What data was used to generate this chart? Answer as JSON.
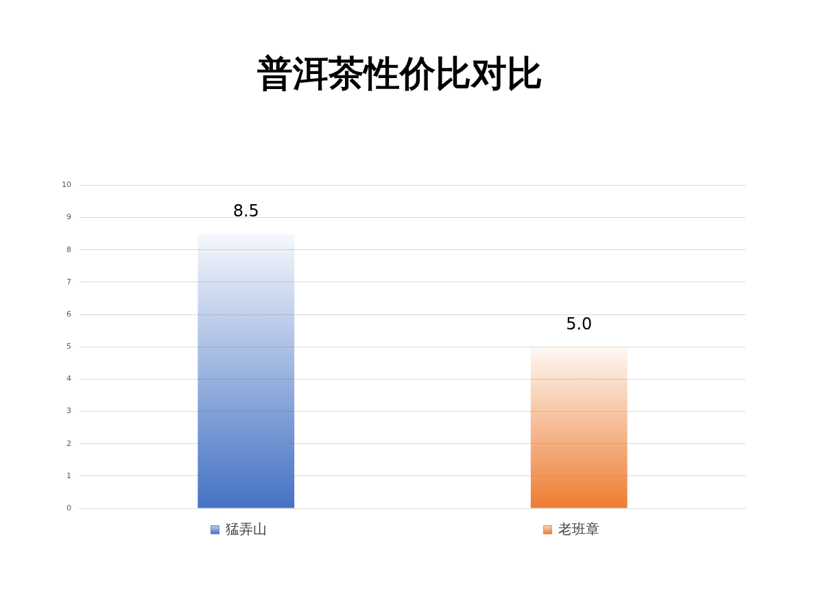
{
  "chart_data": {
    "type": "bar",
    "title": "普洱茶性价比对比",
    "categories": [
      "猛弄山",
      "老班章"
    ],
    "values": [
      8.5,
      5.0
    ],
    "colors": [
      "#4472c4",
      "#ed7d31"
    ],
    "value_labels": [
      "8.5",
      "5.0"
    ],
    "ylim": [
      0,
      10
    ],
    "yticks": [
      0,
      1,
      2,
      3,
      4,
      5,
      6,
      7,
      8,
      9,
      10
    ],
    "grid": "y"
  }
}
